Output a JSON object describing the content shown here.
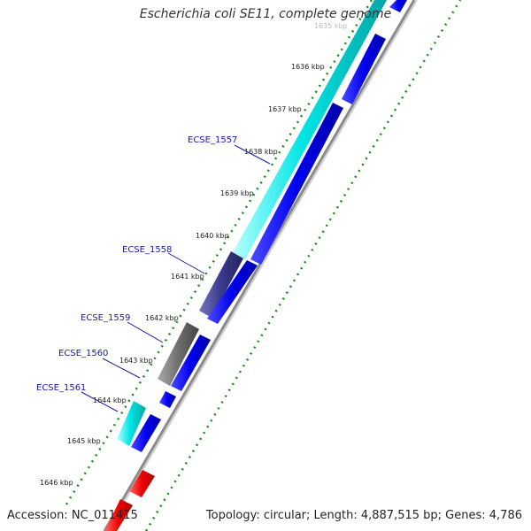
{
  "header": {
    "title": "Escherichia coli SE11, complete genome"
  },
  "footer": {
    "accession": "Accession: NC_011415",
    "topology": "Topology: circular; Length: 4,887,515 bp; Genes: 4,786"
  },
  "scale": {
    "faded_label": "1635 kbp",
    "ticks": [
      "1636 kbp",
      "1637 kbp",
      "1638 kbp",
      "1639 kbp",
      "1640 kbp",
      "1641 kbp",
      "1642 kbp",
      "1643 kbp",
      "1644 kbp",
      "1645 kbp",
      "1646 kbp"
    ]
  },
  "genes": [
    "ECSE_1557",
    "ECSE_1558",
    "ECSE_1559",
    "ECSE_1560",
    "ECSE_1561"
  ],
  "colors": {
    "cyan": "#00e5e5",
    "navy": "#3a3a8c",
    "gray": "#6e6e6e",
    "blue": "#0000ee",
    "red": "#ee0000",
    "green_dots": "#1f8a1f",
    "backbone": "#8a8a8a",
    "gene_label": "#1a1aa6"
  }
}
